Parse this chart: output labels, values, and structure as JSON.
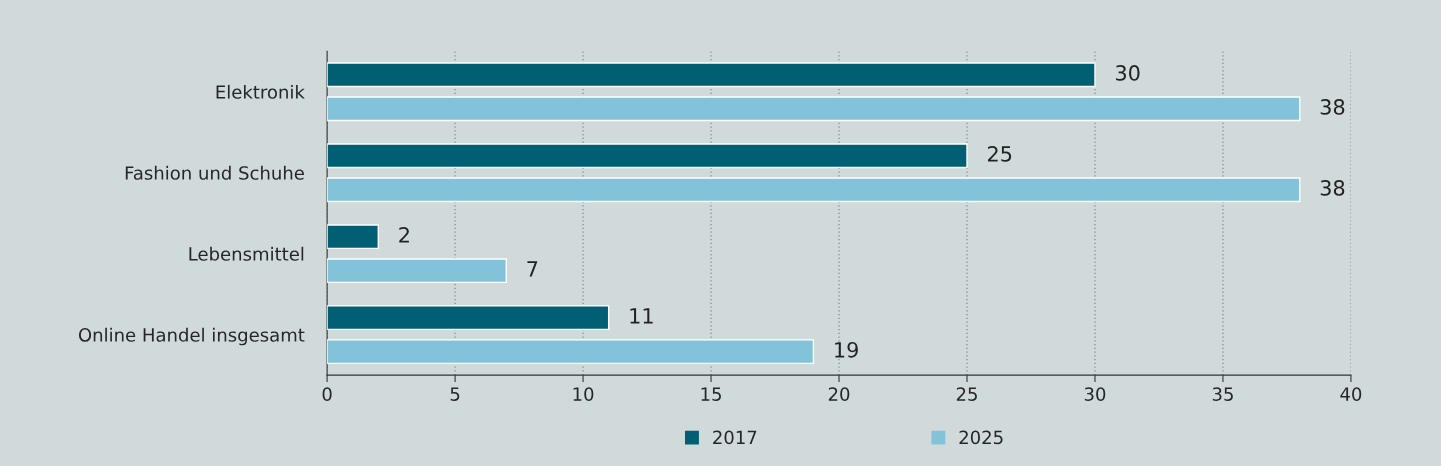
{
  "chart_data": {
    "type": "bar",
    "orientation": "horizontal",
    "categories": [
      "Elektronik",
      "Fashion und Schuhe",
      "Lebensmittel",
      "Online Handel insgesamt"
    ],
    "series": [
      {
        "name": "2017",
        "color": "#005f73",
        "values": [
          30,
          25,
          2,
          11
        ]
      },
      {
        "name": "2025",
        "color": "#82c3da",
        "values": [
          38,
          38,
          7,
          19
        ]
      }
    ],
    "xlim": [
      0,
      40
    ],
    "xticks": [
      0,
      5,
      10,
      15,
      20,
      25,
      30,
      35,
      40
    ],
    "grid": "x",
    "legend": "bottom",
    "data_labels": true
  }
}
